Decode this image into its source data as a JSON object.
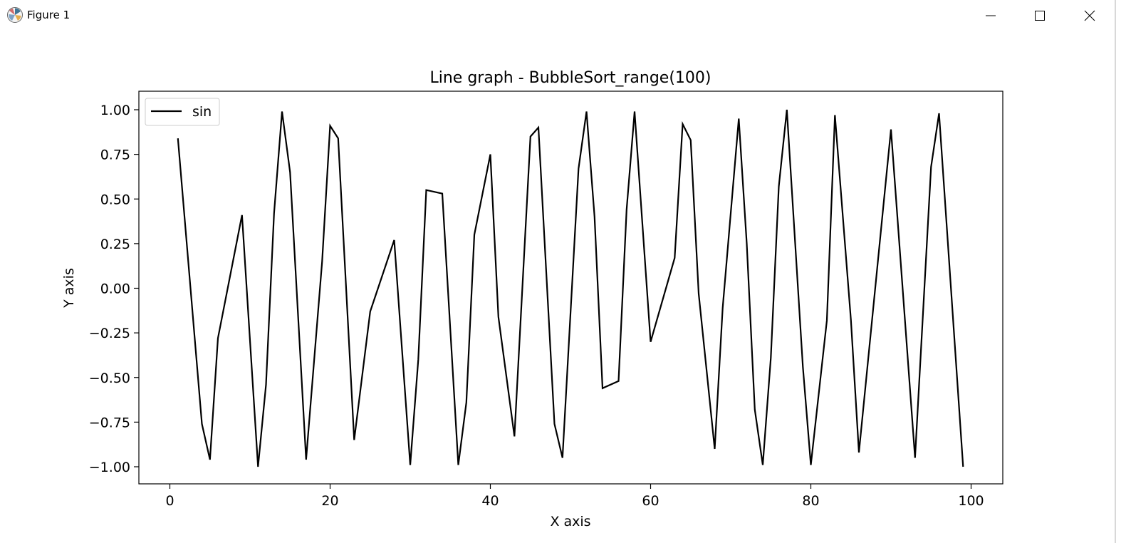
{
  "window": {
    "title": "Figure 1",
    "icon": "matplotlib-icon"
  },
  "chart_data": {
    "type": "line",
    "title": "Line graph - BubbleSort_range(100)",
    "xlabel": "X axis",
    "ylabel": "Y axis",
    "xlim": [
      -5,
      103
    ],
    "ylim": [
      -1.1,
      1.1
    ],
    "xticks": [
      0,
      20,
      40,
      60,
      80,
      100
    ],
    "xtick_labels": [
      "0",
      "20",
      "40",
      "60",
      "80",
      "100"
    ],
    "yticks": [
      1.0,
      0.75,
      0.5,
      0.25,
      0.0,
      -0.25,
      -0.5,
      -0.75,
      -1.0
    ],
    "ytick_labels": [
      "1.00",
      "0.75",
      "0.50",
      "0.25",
      "0.00",
      "−0.25",
      "−0.50",
      "−0.75",
      "−1.00"
    ],
    "legend_position": "upper-left",
    "grid": false,
    "series": [
      {
        "name": "sin",
        "color": "#000000",
        "x": [
          1,
          4,
          5,
          6,
          9,
          11,
          12,
          13,
          14,
          15,
          17,
          19,
          20,
          21,
          23,
          25,
          28,
          30,
          31,
          32,
          34,
          36,
          37,
          38,
          40,
          41,
          43,
          45,
          46,
          48,
          49,
          51,
          52,
          53,
          54,
          56,
          57,
          58,
          60,
          63,
          64,
          65,
          66,
          68,
          69,
          71,
          72,
          73,
          74,
          75,
          76,
          77,
          79,
          80,
          82,
          83,
          85,
          86,
          90,
          93,
          95,
          96,
          99
        ],
        "y": [
          0.84,
          -0.76,
          -0.96,
          -0.28,
          0.41,
          -1.0,
          -0.54,
          0.42,
          0.99,
          0.65,
          -0.96,
          0.15,
          0.91,
          0.84,
          -0.85,
          -0.13,
          0.27,
          -0.99,
          -0.4,
          0.55,
          0.53,
          -0.99,
          -0.64,
          0.3,
          0.75,
          -0.16,
          -0.83,
          0.85,
          0.9,
          -0.76,
          -0.95,
          0.67,
          0.99,
          0.4,
          -0.56,
          -0.52,
          0.44,
          0.99,
          -0.3,
          0.17,
          0.92,
          0.83,
          -0.03,
          -0.9,
          -0.11,
          0.95,
          0.25,
          -0.68,
          -0.99,
          -0.39,
          0.57,
          1.0,
          -0.44,
          -0.99,
          -0.18,
          0.97,
          -0.18,
          -0.92,
          0.89,
          -0.95,
          0.68,
          0.98,
          -1.0
        ]
      }
    ]
  }
}
